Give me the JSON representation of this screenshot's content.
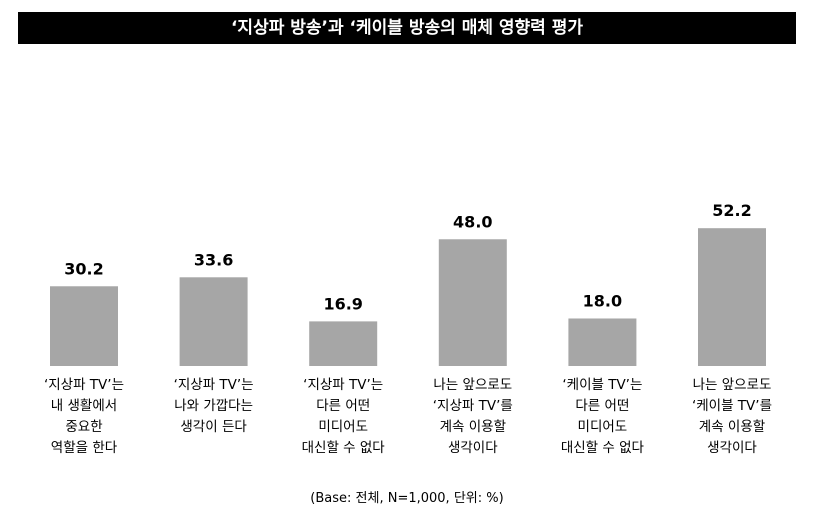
{
  "chart_data": {
    "type": "bar",
    "title": "‘지상파 방송’과 ‘케이블 방송의 매체 영향력 평가",
    "categories": [
      "‘지상파 TV’는\n내 생활에서\n중요한\n역할을 한다",
      "‘지상파 TV’는\n나와 가깝다는\n생각이 든다",
      "‘지상파 TV’는\n다른 어떤\n미디어도\n대신할 수 없다",
      "나는 앞으로도\n‘지상파 TV’를\n계속 이용할\n생각이다",
      "‘케이블 TV’는\n다른 어떤\n미디어도\n대신할 수 없다",
      "나는 앞으로도\n‘케이블 TV’를\n계속 이용할\n생각이다"
    ],
    "values": [
      30.2,
      33.6,
      16.9,
      48.0,
      18.0,
      52.2
    ],
    "value_labels": [
      "30.2",
      "33.6",
      "16.9",
      "48.0",
      "18.0",
      "52.2"
    ],
    "color": "#a6a6a6",
    "note": "(Base: 전체, N=1,000, 단위: %)"
  }
}
